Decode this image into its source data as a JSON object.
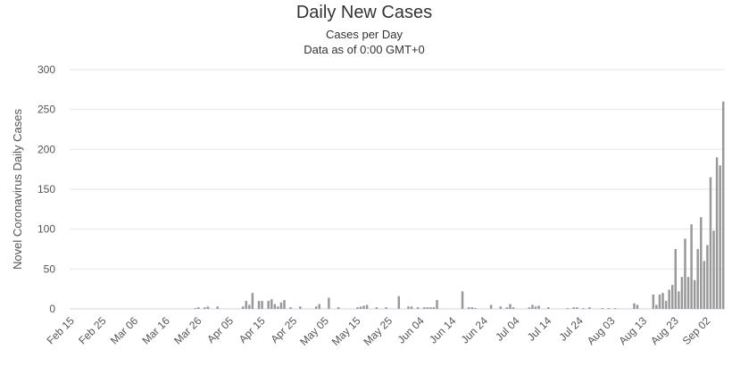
{
  "chart_data": {
    "type": "bar",
    "title": "Daily New Cases",
    "subtitle": [
      "Cases per Day",
      "Data as of 0:00 GMT+0"
    ],
    "y_label": "Novel Coronavirus Daily Cases",
    "color": "#999999",
    "grid": true,
    "ylim": [
      0,
      300
    ],
    "yticks": [
      0,
      50,
      100,
      150,
      200,
      250,
      300
    ],
    "categories": [
      "Feb 15",
      null,
      null,
      null,
      null,
      null,
      null,
      null,
      null,
      null,
      "Feb 25",
      null,
      null,
      null,
      null,
      null,
      null,
      null,
      null,
      null,
      "Mar 06",
      null,
      null,
      null,
      null,
      null,
      null,
      null,
      null,
      null,
      "Mar 16",
      null,
      null,
      null,
      null,
      null,
      null,
      null,
      null,
      null,
      "Mar 26",
      null,
      null,
      null,
      null,
      null,
      null,
      null,
      null,
      null,
      "Apr 05",
      null,
      null,
      null,
      null,
      null,
      null,
      null,
      null,
      null,
      "Apr 15",
      null,
      null,
      null,
      null,
      null,
      null,
      null,
      null,
      null,
      "Apr 25",
      null,
      null,
      null,
      null,
      null,
      null,
      null,
      null,
      null,
      "May 05",
      null,
      null,
      null,
      null,
      null,
      null,
      null,
      null,
      null,
      "May 15",
      null,
      null,
      null,
      null,
      null,
      null,
      null,
      null,
      null,
      "May 25",
      null,
      null,
      null,
      null,
      null,
      null,
      null,
      null,
      null,
      "Jun 04",
      null,
      null,
      null,
      null,
      null,
      null,
      null,
      null,
      null,
      "Jun 14",
      null,
      null,
      null,
      null,
      null,
      null,
      null,
      null,
      null,
      "Jun 24",
      null,
      null,
      null,
      null,
      null,
      null,
      null,
      null,
      null,
      "Jul 04",
      null,
      null,
      null,
      null,
      null,
      null,
      null,
      null,
      null,
      "Jul 14",
      null,
      null,
      null,
      null,
      null,
      null,
      null,
      null,
      null,
      "Jul 24",
      null,
      null,
      null,
      null,
      null,
      null,
      null,
      null,
      null,
      "Aug 03",
      null,
      null,
      null,
      null,
      null,
      null,
      null,
      null,
      null,
      "Aug 13",
      null,
      null,
      null,
      null,
      null,
      null,
      null,
      null,
      null,
      "Aug 23",
      null,
      null,
      null,
      null,
      null,
      null,
      null,
      null,
      null,
      "Sep 02",
      null,
      null,
      null,
      null,
      null
    ],
    "values": [
      0,
      0,
      0,
      0,
      0,
      0,
      0,
      0,
      0,
      0,
      0,
      0,
      0,
      0,
      0,
      0,
      0,
      0,
      0,
      0,
      0,
      0,
      0,
      0,
      0,
      0,
      0,
      0,
      0,
      0,
      0,
      0,
      0,
      0,
      0,
      0,
      0,
      0,
      0,
      1,
      2,
      0,
      2,
      3,
      0,
      0,
      3,
      0,
      0,
      0,
      0,
      0,
      0,
      0,
      3,
      10,
      5,
      20,
      0,
      10,
      10,
      0,
      10,
      12,
      6,
      3,
      8,
      11,
      0,
      2,
      0,
      0,
      3,
      0,
      0,
      0,
      0,
      3,
      6,
      0,
      0,
      14,
      0,
      0,
      2,
      0,
      0,
      0,
      0,
      0,
      2,
      3,
      4,
      5,
      0,
      0,
      2,
      0,
      0,
      2,
      0,
      0,
      0,
      16,
      0,
      0,
      3,
      3,
      0,
      2,
      0,
      2,
      2,
      2,
      2,
      11,
      0,
      0,
      0,
      0,
      0,
      0,
      0,
      22,
      0,
      2,
      2,
      1,
      0,
      0,
      0,
      0,
      5,
      0,
      0,
      3,
      0,
      2,
      6,
      2,
      0,
      0,
      0,
      0,
      2,
      5,
      3,
      4,
      0,
      0,
      2,
      0,
      0,
      0,
      0,
      0,
      1,
      0,
      2,
      2,
      0,
      1,
      0,
      2,
      0,
      0,
      0,
      1,
      0,
      1,
      0,
      1,
      0,
      0,
      0,
      0,
      0,
      7,
      5,
      0,
      0,
      0,
      0,
      18,
      5,
      18,
      20,
      10,
      24,
      30,
      75,
      22,
      40,
      88,
      40,
      106,
      36,
      75,
      115,
      60,
      80,
      165,
      98,
      190,
      180,
      260
    ]
  }
}
